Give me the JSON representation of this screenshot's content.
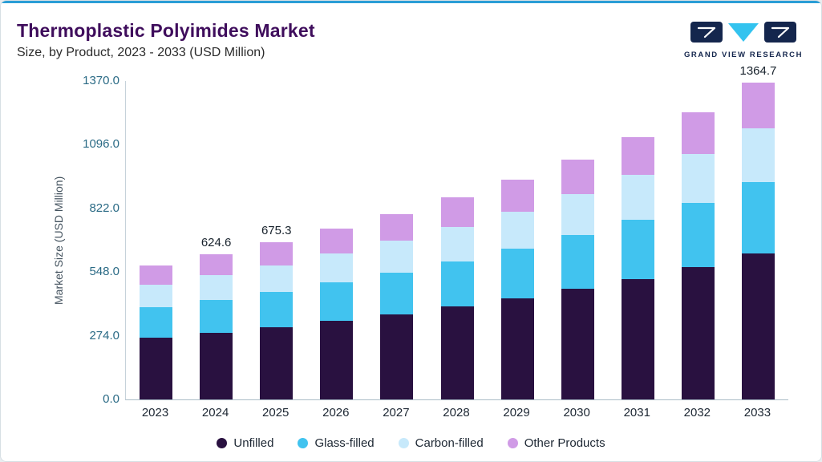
{
  "header": {
    "title": "Thermoplastic Polyimides Market",
    "subtitle": "Size, by Product, 2023 - 2033 (USD Million)"
  },
  "logo": {
    "text": "GRAND VIEW RESEARCH",
    "navy": "#14264d",
    "cyan": "#33c3ef"
  },
  "accent_color": "#2b9ed6",
  "chart_data": {
    "type": "bar",
    "stacked": true,
    "title": "Thermoplastic Polyimides Market",
    "subtitle": "Size, by Product, 2023 - 2033 (USD Million)",
    "xlabel": "",
    "ylabel": "Market Size (USD Million)",
    "ylim": [
      0,
      1370
    ],
    "yticks": [
      0,
      274,
      548,
      822,
      1096,
      1370
    ],
    "ytick_labels": [
      "0.0",
      "274.0",
      "548.0",
      "822.0",
      "1096.0",
      "1370.0"
    ],
    "categories": [
      "2023",
      "2024",
      "2025",
      "2026",
      "2027",
      "2028",
      "2029",
      "2030",
      "2031",
      "2032",
      "2033"
    ],
    "series": [
      {
        "name": "Unfilled",
        "color": "#291140",
        "values": [
          265.8,
          287.3,
          310.6,
          337.4,
          366.9,
          399.5,
          435.4,
          475.1,
          519.2,
          568.0,
          627.8
        ]
      },
      {
        "name": "Glass-filled",
        "color": "#41c3ef",
        "values": [
          130.0,
          140.5,
          152.0,
          165.0,
          179.5,
          195.4,
          213.0,
          232.4,
          253.9,
          277.8,
          307.1
        ]
      },
      {
        "name": "Carbon-filled",
        "color": "#c7e9fb",
        "values": [
          98.2,
          106.2,
          114.8,
          124.7,
          135.6,
          147.6,
          160.9,
          175.6,
          191.9,
          209.9,
          232.0
        ]
      },
      {
        "name": "Other Products",
        "color": "#d09be6",
        "values": [
          83.9,
          90.6,
          97.9,
          106.4,
          115.7,
          125.9,
          137.2,
          149.8,
          163.6,
          179.1,
          197.8
        ]
      }
    ],
    "totals": [
      577.9,
      624.6,
      675.3,
      733.5,
      797.7,
      868.4,
      946.5,
      1032.9,
      1128.6,
      1234.8,
      1364.7
    ],
    "bar_labels": {
      "2024": "624.6",
      "2025": "675.3",
      "2033": "1364.7"
    },
    "legend_position": "bottom",
    "grid": false
  }
}
